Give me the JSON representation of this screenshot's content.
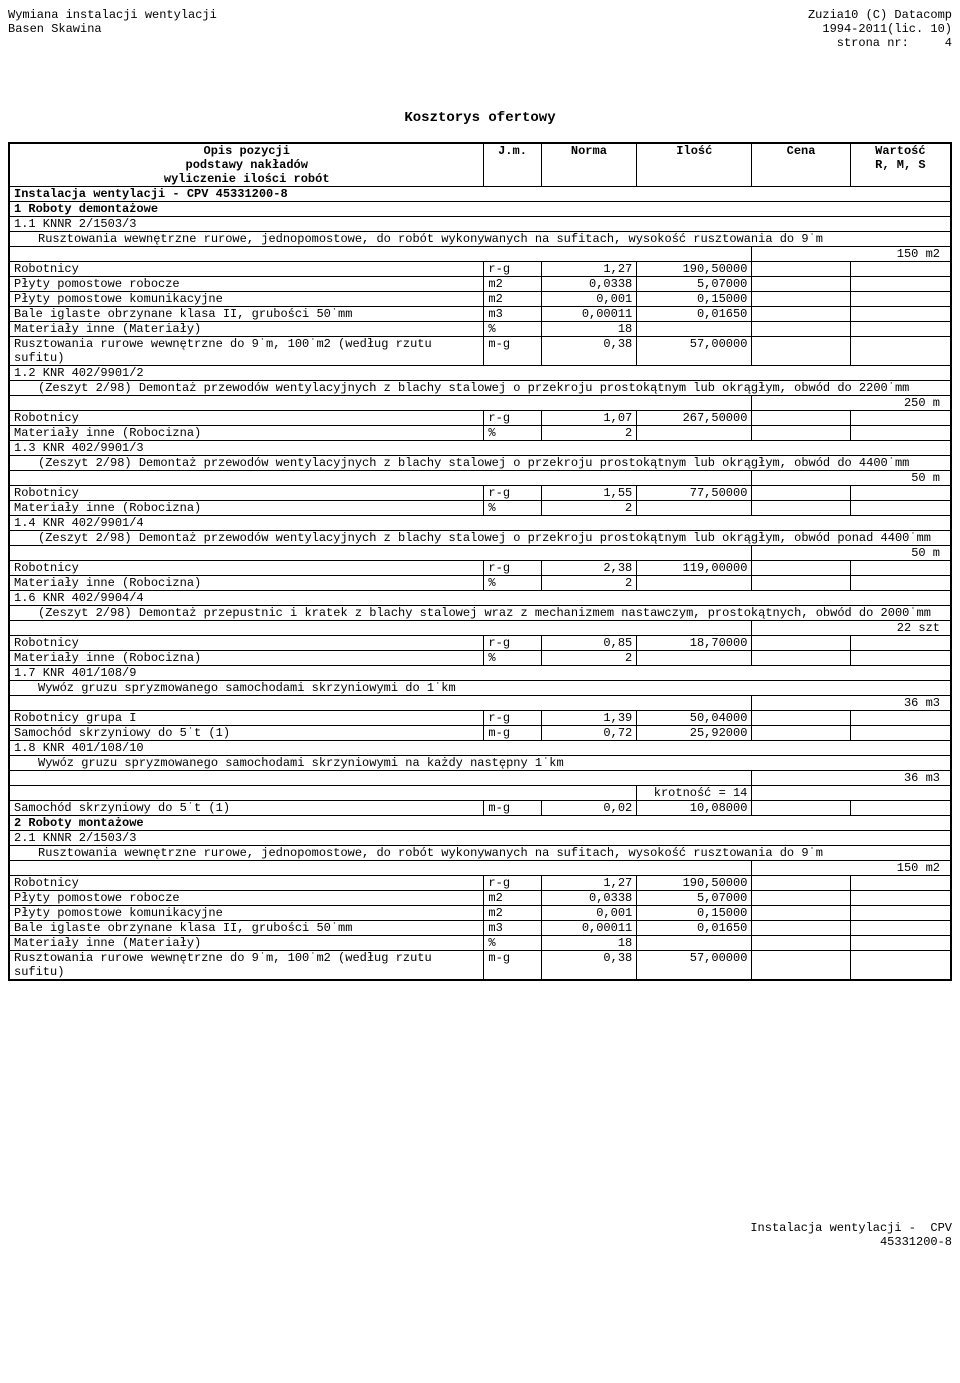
{
  "header": {
    "left_line1": "Wymiana instalacji wentylacji",
    "left_line2": "Basen Skawina",
    "right_line1": "Zuzia10 (C) Datacomp",
    "right_line2": "1994-2011(lic. 10)",
    "right_line3": "strona nr:     4"
  },
  "title": "Kosztorys ofertowy",
  "columns": {
    "opis_l1": "Opis pozycji",
    "opis_l2": "podstawy nakładów",
    "opis_l3": "wyliczenie ilości robót",
    "jm": "J.m.",
    "norma": "Norma",
    "ilosc": "Ilość",
    "cena": "Cena",
    "wartosc_l1": "Wartość",
    "wartosc_l2": "R, M, S"
  },
  "section_installation": "Instalacja wentylacji -  CPV 45331200-8",
  "section1": "1 Roboty demontażowe",
  "item_1_1": {
    "code": "1.1 KNNR 2/1503/3",
    "desc": "Rusztowania wewnętrzne rurowe, jednopomostowe, do robót wykonywanych na sufitach, wysokość rusztowania do 9˙m",
    "qty": "150 m2",
    "rows": [
      {
        "label": "Robotnicy",
        "jm": "r-g",
        "norma": "1,27",
        "ilosc": "190,50000"
      },
      {
        "label": "Płyty pomostowe robocze",
        "jm": "m2",
        "norma": "0,0338",
        "ilosc": "5,07000"
      },
      {
        "label": "Płyty pomostowe komunikacyjne",
        "jm": "m2",
        "norma": "0,001",
        "ilosc": "0,15000"
      },
      {
        "label": "Bale iglaste obrzynane klasa II, grubości 50˙mm",
        "jm": "m3",
        "norma": "0,00011",
        "ilosc": "0,01650"
      },
      {
        "label": "Materiały inne (Materiały)",
        "jm": "%",
        "norma": "18",
        "ilosc": ""
      },
      {
        "label": "Rusztowania rurowe wewnętrzne do 9˙m, 100˙m2 (według rzutu sufitu)",
        "jm": "m-g",
        "norma": "0,38",
        "ilosc": "57,00000"
      }
    ]
  },
  "item_1_2": {
    "code": "1.2 KNR 402/9901/2",
    "desc": "(Zeszyt 2/98) Demontaż przewodów wentylacyjnych z blachy stalowej o przekroju prostokątnym lub okrągłym, obwód do 2200˙mm",
    "qty": "250 m",
    "rows": [
      {
        "label": "Robotnicy",
        "jm": "r-g",
        "norma": "1,07",
        "ilosc": "267,50000"
      },
      {
        "label": "Materiały inne (Robocizna)",
        "jm": "%",
        "norma": "2",
        "ilosc": ""
      }
    ]
  },
  "item_1_3": {
    "code": "1.3 KNR 402/9901/3",
    "desc": "(Zeszyt 2/98) Demontaż przewodów wentylacyjnych z blachy stalowej o przekroju prostokątnym lub okrągłym, obwód do 4400˙mm",
    "qty": "50 m",
    "rows": [
      {
        "label": "Robotnicy",
        "jm": "r-g",
        "norma": "1,55",
        "ilosc": "77,50000"
      },
      {
        "label": "Materiały inne (Robocizna)",
        "jm": "%",
        "norma": "2",
        "ilosc": ""
      }
    ]
  },
  "item_1_4": {
    "code": "1.4 KNR 402/9901/4",
    "desc": "(Zeszyt 2/98) Demontaż przewodów wentylacyjnych z blachy stalowej o przekroju prostokątnym lub okrągłym, obwód ponad 4400˙mm",
    "qty": "50 m",
    "rows": [
      {
        "label": "Robotnicy",
        "jm": "r-g",
        "norma": "2,38",
        "ilosc": "119,00000"
      },
      {
        "label": "Materiały inne (Robocizna)",
        "jm": "%",
        "norma": "2",
        "ilosc": ""
      }
    ]
  },
  "item_1_6": {
    "code": "1.6 KNR 402/9904/4",
    "desc": "(Zeszyt 2/98) Demontaż przepustnic i kratek z blachy stalowej wraz z mechanizmem nastawczym, prostokątnych, obwód do 2000˙mm",
    "qty": "22 szt",
    "rows": [
      {
        "label": "Robotnicy",
        "jm": "r-g",
        "norma": "0,85",
        "ilosc": "18,70000"
      },
      {
        "label": "Materiały inne (Robocizna)",
        "jm": "%",
        "norma": "2",
        "ilosc": ""
      }
    ]
  },
  "item_1_7": {
    "code": "1.7 KNR 401/108/9",
    "desc": "Wywóz gruzu spryzmowanego samochodami skrzyniowymi do 1˙km",
    "qty": "36 m3",
    "rows": [
      {
        "label": "Robotnicy grupa I",
        "jm": "r-g",
        "norma": "1,39",
        "ilosc": "50,04000"
      },
      {
        "label": "Samochód skrzyniowy do 5˙t (1)",
        "jm": "m-g",
        "norma": "0,72",
        "ilosc": "25,92000"
      }
    ]
  },
  "item_1_8": {
    "code": "1.8 KNR 401/108/10",
    "desc": "Wywóz gruzu spryzmowanego samochodami skrzyniowymi na każdy następny 1˙km",
    "qty": "36 m3",
    "krotnosc": "krotność = 14",
    "rows": [
      {
        "label": "Samochód skrzyniowy do 5˙t (1)",
        "jm": "m-g",
        "norma": "0,02",
        "ilosc": "10,08000"
      }
    ]
  },
  "section2": "2 Roboty montażowe",
  "item_2_1": {
    "code": "2.1 KNNR 2/1503/3",
    "desc": "Rusztowania wewnętrzne rurowe, jednopomostowe, do robót wykonywanych na sufitach, wysokość rusztowania do 9˙m",
    "qty": "150 m2",
    "rows": [
      {
        "label": "Robotnicy",
        "jm": "r-g",
        "norma": "1,27",
        "ilosc": "190,50000"
      },
      {
        "label": "Płyty pomostowe robocze",
        "jm": "m2",
        "norma": "0,0338",
        "ilosc": "5,07000"
      },
      {
        "label": "Płyty pomostowe komunikacyjne",
        "jm": "m2",
        "norma": "0,001",
        "ilosc": "0,15000"
      },
      {
        "label": "Bale iglaste obrzynane klasa II, grubości 50˙mm",
        "jm": "m3",
        "norma": "0,00011",
        "ilosc": "0,01650"
      },
      {
        "label": "Materiały inne (Materiały)",
        "jm": "%",
        "norma": "18",
        "ilosc": ""
      },
      {
        "label": "Rusztowania rurowe wewnętrzne do 9˙m, 100˙m2 (według rzutu sufitu)",
        "jm": "m-g",
        "norma": "0,38",
        "ilosc": "57,00000"
      }
    ]
  },
  "footer": {
    "line1": "Instalacja wentylacji -  CPV",
    "line2": "45331200-8"
  }
}
